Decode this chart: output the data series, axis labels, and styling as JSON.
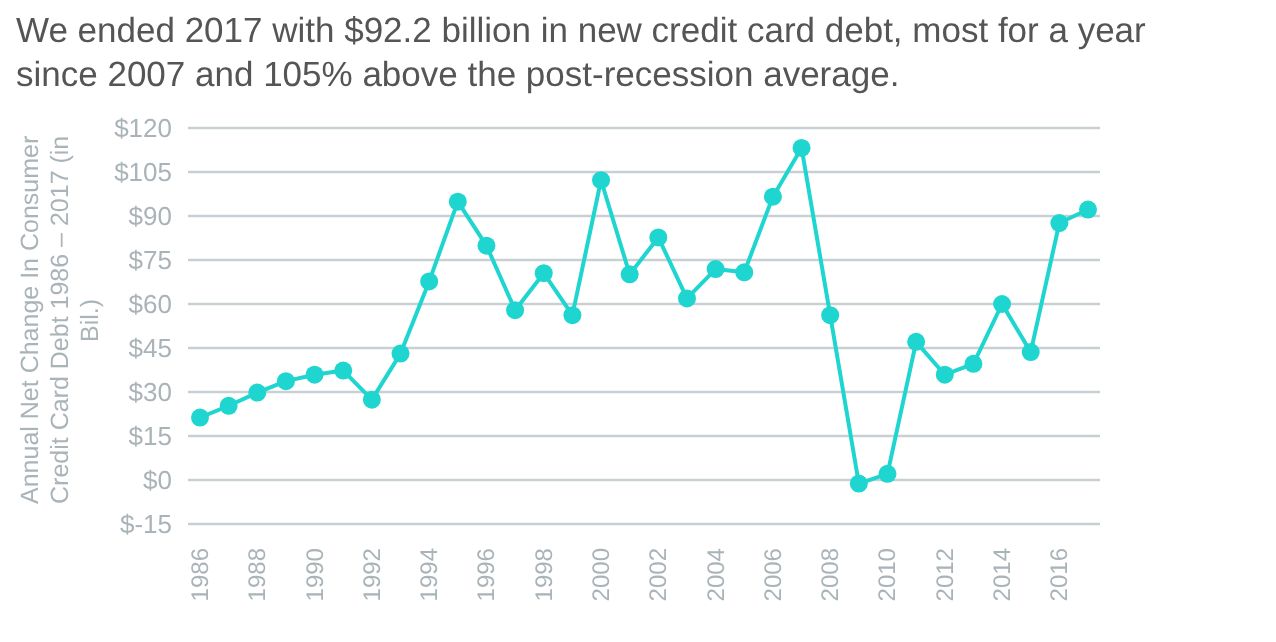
{
  "chart_data": {
    "type": "line",
    "title": "We ended 2017 with $92.2 billion in new credit card debt, most for a year since 2007 and 105% above the post-recession average.",
    "ylabel": "Annual Net Change In Consumer Credit Card Debt 1986 – 2017 (in Bil.)",
    "categories": [
      "1986",
      null,
      "1988",
      null,
      "1990",
      null,
      "1992",
      null,
      "1994",
      null,
      "1996",
      null,
      "1998",
      null,
      "2000",
      null,
      "2002",
      null,
      "2004",
      null,
      "2006",
      null,
      "2008",
      null,
      "2010",
      null,
      "2012",
      null,
      "2014",
      null,
      "2016",
      null
    ],
    "series": [
      {
        "color": "#1fd5d0",
        "values": [
          21.3,
          25.3,
          29.8,
          33.7,
          35.9,
          37.3,
          27.4,
          43.1,
          67.7,
          94.9,
          79.9,
          57.9,
          70.5,
          56.2,
          102.2,
          70.1,
          82.7,
          61.9,
          71.9,
          70.8,
          96.6,
          113.2,
          56.2,
          -1.2,
          2.1,
          47.1,
          35.9,
          39.6,
          60.0,
          43.6,
          87.6,
          92.2
        ]
      }
    ],
    "ylim": [
      -15,
      120
    ],
    "yticks": [
      {
        "value": -15,
        "label": "$-15"
      },
      {
        "value": 0,
        "label": "$0"
      },
      {
        "value": 15,
        "label": "$15"
      },
      {
        "value": 30,
        "label": "$30"
      },
      {
        "value": 45,
        "label": "$45"
      },
      {
        "value": 60,
        "label": "$60"
      },
      {
        "value": 75,
        "label": "$75"
      },
      {
        "value": 90,
        "label": "$90"
      },
      {
        "value": 105,
        "label": "$105"
      },
      {
        "value": 120,
        "label": "$120"
      }
    ],
    "grid": "y",
    "marker": "circle",
    "line_style": "solid"
  }
}
